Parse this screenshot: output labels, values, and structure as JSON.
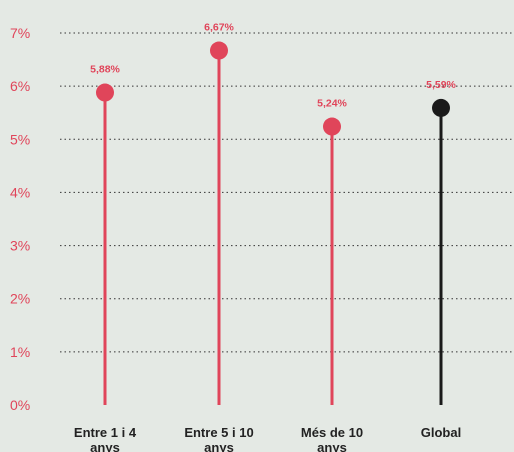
{
  "chart_data": {
    "type": "lollipop",
    "title": "",
    "xlabel": "",
    "ylabel": "",
    "ylim": [
      0,
      7
    ],
    "y_ticks": [
      {
        "value": 0,
        "label": "0%"
      },
      {
        "value": 1,
        "label": "1%"
      },
      {
        "value": 2,
        "label": "2%"
      },
      {
        "value": 3,
        "label": "3%"
      },
      {
        "value": 4,
        "label": "4%"
      },
      {
        "value": 5,
        "label": "5%"
      },
      {
        "value": 6,
        "label": "6%"
      },
      {
        "value": 7,
        "label": "7%"
      }
    ],
    "grid": "horizontal-dotted",
    "categories": [
      {
        "lines": [
          "Entre 1 i 4",
          "anys"
        ],
        "value": 5.88,
        "label": "5,88%",
        "color": "#e0455a",
        "label_color": "#222222"
      },
      {
        "lines": [
          "Entre 5 i 10",
          "anys"
        ],
        "value": 6.67,
        "label": "6,67%",
        "color": "#e0455a",
        "label_color": "#222222"
      },
      {
        "lines": [
          "Més de 10",
          "anys"
        ],
        "value": 5.24,
        "label": "5,24%",
        "color": "#e0455a",
        "label_color": "#222222"
      },
      {
        "lines": [
          "Global"
        ],
        "value": 5.59,
        "label": "5,59%",
        "color": "#1a1a1a",
        "label_color": "#e0455a"
      }
    ],
    "accent_color": "#e0455a",
    "background": "#e4e9e4"
  }
}
